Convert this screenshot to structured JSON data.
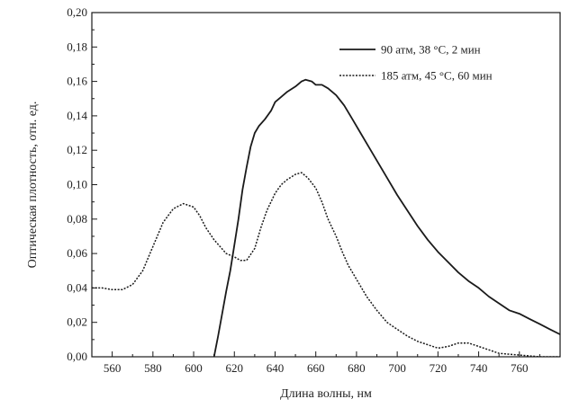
{
  "chart_data": {
    "type": "line",
    "title": "",
    "xlabel": "Длина волны, нм",
    "ylabel": "Оптическая плотность, отн. ед.",
    "xlim": [
      550,
      780
    ],
    "ylim": [
      0,
      0.2
    ],
    "xticks": [
      "560",
      "580",
      "600",
      "620",
      "640",
      "660",
      "680",
      "700",
      "720",
      "740",
      "760"
    ],
    "yticks": [
      "0,00",
      "0,02",
      "0,04",
      "0,06",
      "0,08",
      "0,10",
      "0,12",
      "0,14",
      "0,16",
      "0,18",
      "0,20"
    ],
    "grid": false,
    "legend_position": "top-right",
    "series": [
      {
        "name": "90 атм, 38 °C, 2 мин",
        "style": "solid",
        "color": "#1a1a1a",
        "x": [
          610,
          612,
          614,
          616,
          618,
          620,
          622,
          624,
          626,
          628,
          630,
          632,
          635,
          638,
          640,
          643,
          646,
          650,
          653,
          655,
          658,
          660,
          663,
          666,
          670,
          674,
          678,
          682,
          686,
          690,
          695,
          700,
          705,
          710,
          715,
          720,
          725,
          730,
          735,
          740,
          745,
          750,
          755,
          760,
          765,
          770,
          775,
          780
        ],
        "y": [
          0.0,
          0.012,
          0.025,
          0.038,
          0.05,
          0.065,
          0.08,
          0.097,
          0.11,
          0.122,
          0.13,
          0.134,
          0.138,
          0.143,
          0.148,
          0.151,
          0.154,
          0.157,
          0.16,
          0.161,
          0.16,
          0.158,
          0.158,
          0.156,
          0.152,
          0.146,
          0.138,
          0.13,
          0.122,
          0.114,
          0.104,
          0.094,
          0.085,
          0.076,
          0.068,
          0.061,
          0.055,
          0.049,
          0.044,
          0.04,
          0.035,
          0.031,
          0.027,
          0.025,
          0.022,
          0.019,
          0.016,
          0.013
        ]
      },
      {
        "name": "185 атм, 45 °C, 60 мин",
        "style": "dotted",
        "color": "#1a1a1a",
        "x": [
          550,
          555,
          560,
          565,
          570,
          575,
          580,
          585,
          590,
          595,
          600,
          603,
          606,
          610,
          613,
          616,
          620,
          623,
          626,
          630,
          633,
          636,
          640,
          643,
          646,
          650,
          653,
          656,
          660,
          663,
          666,
          670,
          673,
          676,
          680,
          685,
          690,
          695,
          700,
          705,
          710,
          715,
          720,
          725,
          730,
          735,
          740,
          745,
          750,
          760,
          770,
          780
        ],
        "y": [
          0.04,
          0.04,
          0.039,
          0.039,
          0.042,
          0.05,
          0.064,
          0.078,
          0.086,
          0.089,
          0.087,
          0.082,
          0.075,
          0.068,
          0.064,
          0.06,
          0.058,
          0.056,
          0.056,
          0.063,
          0.075,
          0.085,
          0.095,
          0.1,
          0.103,
          0.106,
          0.107,
          0.104,
          0.098,
          0.09,
          0.08,
          0.07,
          0.061,
          0.053,
          0.045,
          0.035,
          0.027,
          0.02,
          0.016,
          0.012,
          0.009,
          0.007,
          0.005,
          0.006,
          0.008,
          0.008,
          0.006,
          0.004,
          0.002,
          0.001,
          0.0,
          0.0
        ]
      }
    ]
  }
}
